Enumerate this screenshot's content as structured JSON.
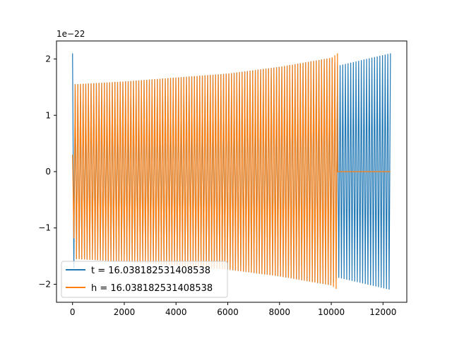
{
  "chart_data": {
    "type": "line",
    "title": "",
    "xlabel": "",
    "ylabel": "",
    "y_multiplier_label": "1e−22",
    "xlim": [
      -620,
      12920
    ],
    "ylim": [
      -2.32,
      2.32
    ],
    "x_ticks": [
      0,
      2000,
      4000,
      6000,
      8000,
      10000,
      12000
    ],
    "x_tick_labels": [
      "0",
      "2000",
      "4000",
      "6000",
      "8000",
      "10000",
      "12000"
    ],
    "y_ticks": [
      -2,
      -1,
      0,
      1,
      2
    ],
    "y_tick_labels": [
      "−2",
      "−1",
      "0",
      "1",
      "2"
    ],
    "grid": false,
    "legend_position": "lower-left",
    "series": [
      {
        "name": "t = 16.038182531408538",
        "color": "#1f77b4",
        "x_range": [
          0,
          12288
        ],
        "envelope_points": {
          "x": [
            0,
            30,
            60,
            2000,
            4000,
            6000,
            8000,
            10000,
            10240,
            12288
          ],
          "amplitude": [
            2.1,
            2.1,
            1.55,
            1.6,
            1.67,
            1.74,
            1.86,
            2.02,
            1.88,
            2.1
          ]
        },
        "oscillations": 240
      },
      {
        "name": "h = 16.038182531408538",
        "color": "#ff7f0e",
        "x_range": [
          0,
          12288
        ],
        "active_x_range": [
          0,
          10240
        ],
        "envelope_points": {
          "x": [
            0,
            30,
            60,
            2000,
            4000,
            6000,
            8000,
            10000,
            10240
          ],
          "amplitude": [
            0.3,
            0.3,
            1.55,
            1.6,
            1.67,
            1.74,
            1.86,
            2.02,
            2.1
          ]
        },
        "flat_value_after": 0,
        "oscillations": 200
      }
    ]
  }
}
